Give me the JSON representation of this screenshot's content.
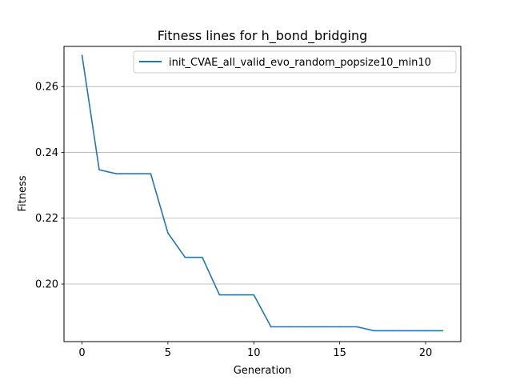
{
  "chart_data": {
    "type": "line",
    "title": "Fitness lines for h_bond_bridging",
    "xlabel": "Generation",
    "ylabel": "Fitness",
    "xlim": [
      -1.05,
      22.05
    ],
    "ylim": [
      0.1825,
      0.2722
    ],
    "xticks": [
      0,
      5,
      10,
      15,
      20
    ],
    "xtick_labels": [
      "0",
      "5",
      "10",
      "15",
      "20"
    ],
    "yticks": [
      0.2,
      0.22,
      0.24,
      0.26
    ],
    "ytick_labels": [
      "0.20",
      "0.22",
      "0.24",
      "0.26"
    ],
    "grid": "y-major",
    "legend_position": "top-right",
    "series": [
      {
        "name": "init_CVAE_all_valid_evo_random_popsize10_min10",
        "color": "#1f77b4",
        "x": [
          0,
          1,
          2,
          3,
          4,
          5,
          6,
          7,
          8,
          9,
          10,
          11,
          12,
          13,
          14,
          15,
          16,
          17,
          18,
          19,
          20,
          21
        ],
        "y": [
          0.2695,
          0.2347,
          0.2335,
          0.2335,
          0.2335,
          0.2155,
          0.2081,
          0.2081,
          0.1967,
          0.1967,
          0.1967,
          0.187,
          0.187,
          0.187,
          0.187,
          0.187,
          0.187,
          0.1858,
          0.1858,
          0.1858,
          0.1858,
          0.1858
        ]
      }
    ]
  }
}
